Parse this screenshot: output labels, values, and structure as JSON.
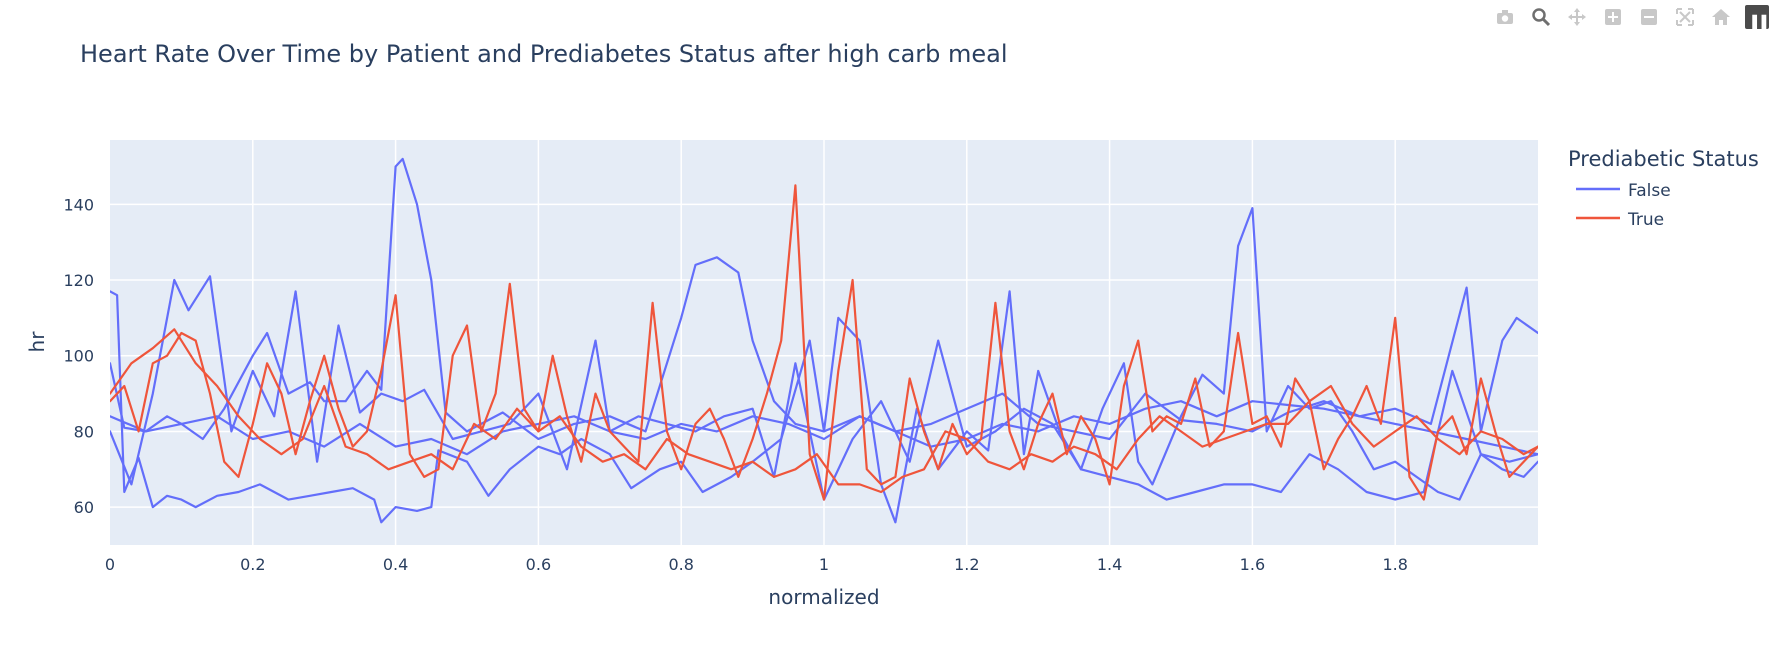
{
  "modebar": {
    "buttons": [
      "camera-icon",
      "zoom-icon",
      "pan-icon",
      "zoom-in-icon",
      "zoom-out-icon",
      "autoscale-icon",
      "home-icon"
    ],
    "logo": "plotly-logo-icon"
  },
  "colors": {
    "false": "#636efa",
    "true": "#ef553b",
    "plot_bg": "#e5ecf6",
    "grid": "#ffffff",
    "text": "#2a3f5f"
  },
  "chart_data": {
    "type": "line",
    "title": "Heart Rate Over Time by Patient and Prediabetes Status after high carb meal",
    "xlabel": "normalized",
    "ylabel": "hr",
    "xlim": [
      0,
      2.0
    ],
    "ylim": [
      50,
      157
    ],
    "xticks": [
      "0",
      "0.2",
      "0.4",
      "0.6",
      "0.8",
      "1",
      "1.2",
      "1.4",
      "1.6",
      "1.8"
    ],
    "yticks": [
      "60",
      "80",
      "100",
      "120",
      "140"
    ],
    "grid": true,
    "legend": {
      "title": "Prediabetic Status",
      "placement": "right",
      "entries": [
        "False",
        "True"
      ]
    },
    "series": [
      {
        "name": "False",
        "patient": "A",
        "x": [
          0.0,
          0.02,
          0.05,
          0.08,
          0.1,
          0.13,
          0.16,
          0.2,
          0.22,
          0.25,
          0.28,
          0.3,
          0.33,
          0.36,
          0.38,
          0.4,
          0.41,
          0.43,
          0.45,
          0.47,
          0.5,
          0.55,
          0.6,
          0.65,
          0.7,
          0.75,
          0.8,
          0.82,
          0.85,
          0.88,
          0.9,
          0.93,
          0.96,
          1.0,
          1.05,
          1.1,
          1.15,
          1.2,
          1.25,
          1.3,
          1.35,
          1.4,
          1.45,
          1.5,
          1.55,
          1.6,
          1.65,
          1.7,
          1.75,
          1.8,
          1.85,
          1.9,
          1.92,
          1.95,
          1.97,
          2.0
        ],
        "y": [
          98,
          81,
          80,
          84,
          82,
          78,
          86,
          100,
          106,
          90,
          93,
          88,
          88,
          96,
          91,
          150,
          152,
          140,
          120,
          85,
          80,
          85,
          78,
          82,
          84,
          80,
          110,
          124,
          126,
          122,
          104,
          88,
          82,
          80,
          84,
          80,
          82,
          86,
          90,
          82,
          80,
          78,
          90,
          83,
          82,
          80,
          85,
          88,
          84,
          86,
          82,
          118,
          80,
          104,
          110,
          106
        ]
      },
      {
        "name": "False",
        "patient": "B",
        "x": [
          0.0,
          0.03,
          0.06,
          0.09,
          0.11,
          0.14,
          0.17,
          0.2,
          0.23,
          0.26,
          0.29,
          0.32,
          0.35,
          0.38,
          0.41,
          0.44,
          0.48,
          0.52,
          0.56,
          0.6,
          0.64,
          0.68,
          0.7,
          0.74,
          0.78,
          0.82,
          0.86,
          0.9,
          0.93,
          0.96,
          1.0,
          1.04,
          1.08,
          1.12,
          1.16,
          1.2,
          1.24,
          1.28,
          1.32,
          1.36,
          1.4,
          1.44,
          1.48,
          1.52,
          1.56,
          1.6,
          1.64,
          1.68,
          1.72,
          1.76,
          1.8,
          1.84,
          1.88,
          1.92,
          1.96,
          2.0
        ],
        "y": [
          80,
          66,
          90,
          120,
          112,
          121,
          80,
          96,
          84,
          117,
          72,
          108,
          85,
          90,
          88,
          91,
          78,
          80,
          82,
          90,
          70,
          104,
          80,
          84,
          82,
          80,
          84,
          86,
          68,
          98,
          62,
          78,
          88,
          72,
          104,
          76,
          80,
          86,
          82,
          70,
          68,
          66,
          62,
          64,
          66,
          66,
          64,
          74,
          70,
          64,
          62,
          64,
          96,
          74,
          72,
          74
        ]
      },
      {
        "name": "False",
        "patient": "C",
        "x": [
          0.0,
          0.01,
          0.02,
          0.04,
          0.06,
          0.08,
          0.1,
          0.12,
          0.15,
          0.18,
          0.21,
          0.25,
          0.28,
          0.31,
          0.34,
          0.37,
          0.38,
          0.4,
          0.43,
          0.45,
          0.46,
          0.5,
          0.53,
          0.56,
          0.6,
          0.63,
          0.66,
          0.7,
          0.73,
          0.77,
          0.8,
          0.83,
          0.87,
          0.9,
          0.94,
          0.98,
          1.0,
          1.02,
          1.05,
          1.08,
          1.1,
          1.13,
          1.16,
          1.2,
          1.23,
          1.26,
          1.28,
          1.3,
          1.33,
          1.36,
          1.39,
          1.42,
          1.44,
          1.46,
          1.5,
          1.53,
          1.56,
          1.58,
          1.6,
          1.62,
          1.65,
          1.68,
          1.71,
          1.74,
          1.77,
          1.8,
          1.83,
          1.86,
          1.89,
          1.92,
          1.95,
          1.98,
          2.0
        ],
        "y": [
          117,
          116,
          64,
          73,
          60,
          63,
          62,
          60,
          63,
          64,
          66,
          62,
          63,
          64,
          65,
          62,
          56,
          60,
          59,
          60,
          75,
          72,
          63,
          70,
          76,
          74,
          78,
          74,
          65,
          70,
          72,
          64,
          68,
          72,
          78,
          104,
          80,
          110,
          104,
          66,
          56,
          86,
          70,
          80,
          75,
          117,
          74,
          96,
          80,
          70,
          86,
          98,
          72,
          66,
          84,
          95,
          90,
          129,
          139,
          80,
          92,
          86,
          88,
          80,
          70,
          72,
          68,
          64,
          62,
          74,
          70,
          68,
          72
        ]
      },
      {
        "name": "False",
        "patient": "D",
        "x": [
          0.0,
          0.05,
          0.1,
          0.15,
          0.2,
          0.25,
          0.3,
          0.35,
          0.4,
          0.45,
          0.5,
          0.55,
          0.6,
          0.65,
          0.7,
          0.75,
          0.8,
          0.85,
          0.9,
          0.95,
          1.0,
          1.05,
          1.1,
          1.15,
          1.2,
          1.25,
          1.3,
          1.35,
          1.4,
          1.45,
          1.5,
          1.55,
          1.6,
          1.65,
          1.7,
          1.75,
          1.8,
          1.85,
          1.9,
          1.95,
          2.0
        ],
        "y": [
          84,
          80,
          82,
          84,
          78,
          80,
          76,
          82,
          76,
          78,
          74,
          80,
          82,
          84,
          80,
          78,
          82,
          80,
          84,
          82,
          78,
          84,
          80,
          76,
          78,
          82,
          80,
          84,
          82,
          86,
          88,
          84,
          88,
          87,
          86,
          84,
          82,
          80,
          78,
          76,
          74
        ]
      },
      {
        "name": "True",
        "patient": "E",
        "x": [
          0.0,
          0.02,
          0.04,
          0.06,
          0.08,
          0.1,
          0.12,
          0.14,
          0.16,
          0.18,
          0.2,
          0.22,
          0.24,
          0.26,
          0.28,
          0.3,
          0.32,
          0.34,
          0.36,
          0.38,
          0.4,
          0.42,
          0.44,
          0.46,
          0.48,
          0.5,
          0.52,
          0.54,
          0.56,
          0.58,
          0.6,
          0.62,
          0.64,
          0.66,
          0.68,
          0.7,
          0.72,
          0.74,
          0.76,
          0.78,
          0.8,
          0.82,
          0.84,
          0.86,
          0.88,
          0.9,
          0.92,
          0.94,
          0.96,
          0.98,
          1.0,
          1.02,
          1.04,
          1.06,
          1.08,
          1.1,
          1.12,
          1.14,
          1.16,
          1.18,
          1.2,
          1.22,
          1.24,
          1.26,
          1.28,
          1.3,
          1.32,
          1.34,
          1.36,
          1.38,
          1.4,
          1.42,
          1.44,
          1.46,
          1.48,
          1.5,
          1.52,
          1.54,
          1.56,
          1.58,
          1.6,
          1.62,
          1.64,
          1.66,
          1.68,
          1.7,
          1.72,
          1.74,
          1.76,
          1.78,
          1.8,
          1.82,
          1.84,
          1.86,
          1.88,
          1.9,
          1.92,
          1.94,
          1.96,
          1.98,
          2.0
        ],
        "y": [
          88,
          92,
          80,
          98,
          100,
          106,
          104,
          90,
          72,
          68,
          82,
          98,
          90,
          74,
          88,
          100,
          86,
          76,
          80,
          96,
          116,
          74,
          68,
          70,
          100,
          108,
          80,
          90,
          119,
          86,
          80,
          100,
          84,
          72,
          90,
          80,
          76,
          72,
          114,
          80,
          70,
          82,
          86,
          78,
          68,
          78,
          90,
          104,
          145,
          74,
          62,
          96,
          120,
          70,
          66,
          68,
          94,
          80,
          70,
          82,
          74,
          78,
          114,
          80,
          70,
          82,
          90,
          74,
          84,
          78,
          66,
          92,
          104,
          80,
          84,
          82,
          94,
          76,
          80,
          106,
          82,
          84,
          76,
          94,
          88,
          70,
          78,
          84,
          92,
          82,
          110,
          68,
          62,
          80,
          84,
          74,
          94,
          80,
          68,
          72,
          76
        ]
      },
      {
        "name": "True",
        "patient": "F",
        "x": [
          0.0,
          0.03,
          0.06,
          0.09,
          0.12,
          0.15,
          0.18,
          0.21,
          0.24,
          0.27,
          0.3,
          0.33,
          0.36,
          0.39,
          0.42,
          0.45,
          0.48,
          0.51,
          0.54,
          0.57,
          0.6,
          0.63,
          0.66,
          0.69,
          0.72,
          0.75,
          0.78,
          0.81,
          0.84,
          0.87,
          0.9,
          0.93,
          0.96,
          0.99,
          1.02,
          1.05,
          1.08,
          1.11,
          1.14,
          1.17,
          1.2,
          1.23,
          1.26,
          1.29,
          1.32,
          1.35,
          1.38,
          1.41,
          1.44,
          1.47,
          1.5,
          1.53,
          1.56,
          1.59,
          1.62,
          1.65,
          1.68,
          1.71,
          1.74,
          1.77,
          1.8,
          1.83,
          1.86,
          1.89,
          1.92,
          1.95,
          1.98,
          2.0
        ],
        "y": [
          90,
          98,
          102,
          107,
          98,
          92,
          84,
          78,
          74,
          78,
          92,
          76,
          74,
          70,
          72,
          74,
          70,
          82,
          78,
          86,
          80,
          84,
          76,
          72,
          74,
          70,
          78,
          74,
          72,
          70,
          72,
          68,
          70,
          74,
          66,
          66,
          64,
          68,
          70,
          80,
          78,
          72,
          70,
          74,
          72,
          76,
          74,
          70,
          78,
          84,
          80,
          76,
          78,
          80,
          82,
          82,
          88,
          92,
          82,
          76,
          80,
          84,
          78,
          74,
          80,
          78,
          74,
          76
        ]
      }
    ]
  }
}
